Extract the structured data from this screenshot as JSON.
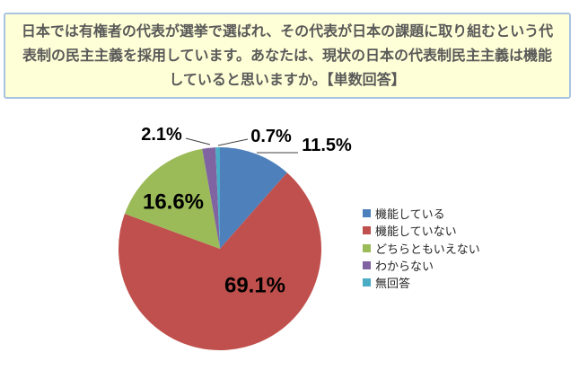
{
  "question_box": {
    "text": "日本では有権者の代表が選挙で選ばれ、その代表が日本の課題に取り組むという代表制の民主主義を採用しています。あなたは、現状の日本の代表制民主主義は機能していると思いますか。【単数回答】",
    "background": "#FFFFD7",
    "border_color": "#A9C3E2",
    "text_color": "#595959"
  },
  "chart_data": {
    "type": "pie",
    "title": "",
    "start_angle_deg": 0,
    "direction": "clockwise",
    "categories": [
      "機能している",
      "機能していない",
      "どちらともいえない",
      "わからない",
      "無回答"
    ],
    "values": [
      11.5,
      69.1,
      16.6,
      2.1,
      0.7
    ],
    "value_labels": [
      "11.5%",
      "69.1%",
      "16.6%",
      "2.1%",
      "0.7%"
    ],
    "colors": [
      "#4E80BC",
      "#C0504D",
      "#9BBB59",
      "#8064A2",
      "#4BACC6"
    ],
    "label_color": "#000000",
    "leader_line_color": "#404040",
    "legend_position": "right",
    "legend_text_color": "#262626",
    "grid": false
  }
}
